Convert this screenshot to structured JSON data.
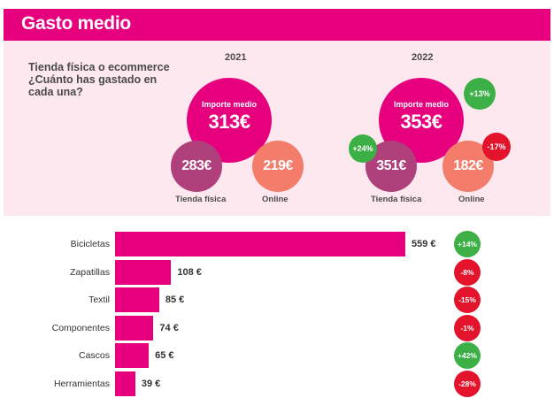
{
  "header": {
    "title": "Gasto medio"
  },
  "question": "Tienda física o ecommerce ¿Cuánto has gastado en cada una?",
  "summary": {
    "y2021": {
      "year": "2021",
      "average_label": "Importe medio",
      "average_value": "313€",
      "store_value": "283€",
      "online_value": "219€",
      "store_label": "Tienda física",
      "online_label": "Online"
    },
    "y2022": {
      "year": "2022",
      "average_label": "Importe medio",
      "average_value": "353€",
      "average_change": "+13%",
      "store_value": "351€",
      "store_change": "+24%",
      "online_value": "182€",
      "online_change": "-17%",
      "store_label": "Tienda física",
      "online_label": "Online"
    }
  },
  "colors": {
    "brand": "#e6007e",
    "store": "#b0407c",
    "online": "#f47c6a",
    "positive": "#3daf47",
    "negative": "#e3132b",
    "panel": "#fde8ef"
  },
  "chart_data": {
    "type": "bar",
    "orientation": "horizontal",
    "categories": [
      "Bicicletas",
      "Zapatillas",
      "Textil",
      "Componentes",
      "Cascos",
      "Herramientas"
    ],
    "values": [
      559,
      108,
      85,
      74,
      65,
      39
    ],
    "value_labels": [
      "559 €",
      "108 €",
      "85 €",
      "74 €",
      "65 €",
      "39 €"
    ],
    "changes": [
      "+14%",
      "-8%",
      "-15%",
      "-1%",
      "+42%",
      "-28%"
    ],
    "unit": "€",
    "xlim": [
      0,
      559
    ]
  }
}
